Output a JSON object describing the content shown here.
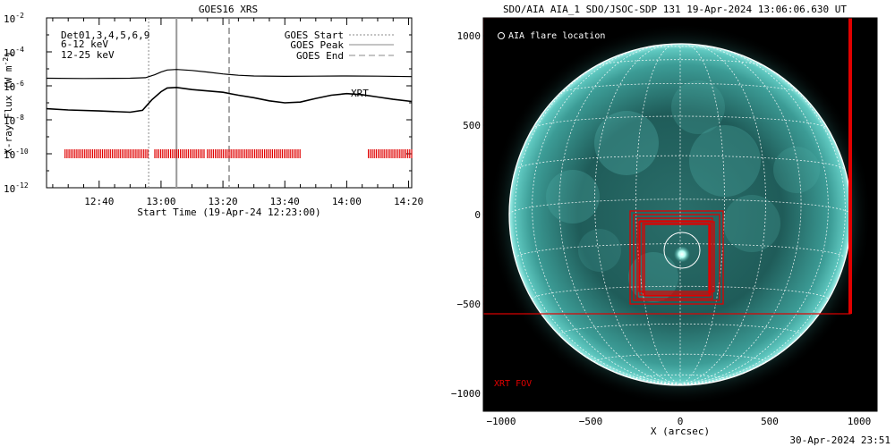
{
  "chart_data": [
    {
      "type": "line",
      "title": "GOES16 XRS",
      "xlabel": "Start Time (19-Apr-24 12:23:00)",
      "ylabel": "X-ray Flux (W m^-2)",
      "ylabel_base": "X-ray Flux (W m",
      "ylabel_exp": "-2",
      "ylabel_close": ")",
      "y_scale": "log",
      "ylim_exp": [
        -12,
        -2
      ],
      "xlim": [
        "12:23",
        "14:21"
      ],
      "x_ticks": [
        "12:40",
        "13:00",
        "13:20",
        "13:40",
        "14:00",
        "14:20"
      ],
      "y_ticks": [
        {
          "base": "10",
          "exp": "-2",
          "e": -2
        },
        {
          "base": "10",
          "exp": "-4",
          "e": -4
        },
        {
          "base": "10",
          "exp": "-6",
          "e": -6
        },
        {
          "base": "10",
          "exp": "-8",
          "e": -8
        },
        {
          "base": "10",
          "exp": "-10",
          "e": -10
        },
        {
          "base": "10",
          "exp": "-12",
          "e": -12
        }
      ],
      "legend_left": {
        "line1": "Det01,3,4,5,6,9",
        "line2": "6-12 keV",
        "line3": "12-25 keV",
        "color_line2": "#d000d0",
        "color_line3": "#00c000"
      },
      "legend_right": {
        "start": "GOES Start",
        "peak": "GOES Peak",
        "end": "GOES End"
      },
      "markers": {
        "start": "12:56",
        "peak": "13:05",
        "end": "13:22"
      },
      "xrt_label": "XRT",
      "xrt_color": "#e00000",
      "xrt_level": 1e-10,
      "xrt_intervals": [
        [
          "12:29",
          "12:56"
        ],
        [
          "12:58",
          "13:14"
        ],
        [
          "13:15",
          "13:45"
        ],
        [
          "14:07",
          "14:21"
        ]
      ],
      "series": [
        {
          "color": "#000000",
          "x": [
            "12:23",
            "12:35",
            "12:50",
            "12:55",
            "12:58",
            "13:00",
            "13:02",
            "13:05",
            "13:10",
            "13:15",
            "13:20",
            "13:25",
            "13:30",
            "13:40",
            "13:50",
            "14:00",
            "14:10",
            "14:21"
          ],
          "y": [
            2.8e-06,
            2.7e-06,
            2.8e-06,
            3e-06,
            4.5e-06,
            6.5e-06,
            8.5e-06,
            9.2e-06,
            8e-06,
            6.5e-06,
            5e-06,
            4.2e-06,
            3.8e-06,
            3.6e-06,
            3.7e-06,
            3.8e-06,
            3.7e-06,
            3.5e-06
          ]
        },
        {
          "color": "#000000",
          "x": [
            "12:23",
            "12:30",
            "12:40",
            "12:50",
            "12:54",
            "12:57",
            "13:00",
            "13:02",
            "13:05",
            "13:10",
            "13:15",
            "13:20",
            "13:25",
            "13:30",
            "13:35",
            "13:40",
            "13:45",
            "13:50",
            "13:55",
            "14:00",
            "14:05",
            "14:10",
            "14:15",
            "14:21"
          ],
          "y": [
            4.5e-08,
            3.8e-08,
            3.3e-08,
            2.8e-08,
            3.6e-08,
            1.5e-07,
            4.5e-07,
            7.5e-07,
            8e-07,
            6e-07,
            5e-07,
            4.2e-07,
            2.8e-07,
            2e-07,
            1.3e-07,
            1e-07,
            1.1e-07,
            1.8e-07,
            2.8e-07,
            3.5e-07,
            3e-07,
            2.2e-07,
            1.6e-07,
            1.2e-07
          ]
        }
      ]
    },
    {
      "type": "scatter",
      "title": "SDO/AIA AIA_1 SDO/JSOC-SDP 131 19-Apr-2024 13:06:06.630 UT",
      "xlabel": "X (arcsec)",
      "ylabel": "",
      "xlim": [
        -1100,
        1100
      ],
      "ylim": [
        -1100,
        1100
      ],
      "x_ticks": [
        -1000,
        -500,
        0,
        500,
        1000
      ],
      "y_ticks": [
        1000,
        500,
        0,
        -500,
        -1000
      ],
      "solar_radius": 955,
      "flare_location": {
        "x": 10,
        "y": -200,
        "radius": 100,
        "label": "AIA flare location"
      },
      "xrt_fov_label": "XRT FOV",
      "xrt_fov_color": "#e00000",
      "xrt_fov_large": {
        "x0": -1100,
        "x1": 950,
        "y0": -555,
        "y1": 1100
      },
      "xrt_fov_boxes": [
        {
          "x0": -280,
          "x1": 240,
          "y0": -500,
          "y1": 20
        },
        {
          "x0": -260,
          "x1": 220,
          "y0": -480,
          "y1": 0
        },
        {
          "x0": -240,
          "x1": 180,
          "y0": -470,
          "y1": -20
        },
        {
          "x0": -225,
          "x1": 170,
          "y0": -450,
          "y1": -35
        },
        {
          "x0": -210,
          "x1": 160,
          "y0": -440,
          "y1": -50
        },
        {
          "x0": -230,
          "x1": 190,
          "y0": -430,
          "y1": -40
        },
        {
          "x0": -200,
          "x1": 165,
          "y0": -455,
          "y1": -55
        }
      ]
    }
  ],
  "footer": {
    "timestamp": "30-Apr-2024 23:51"
  }
}
